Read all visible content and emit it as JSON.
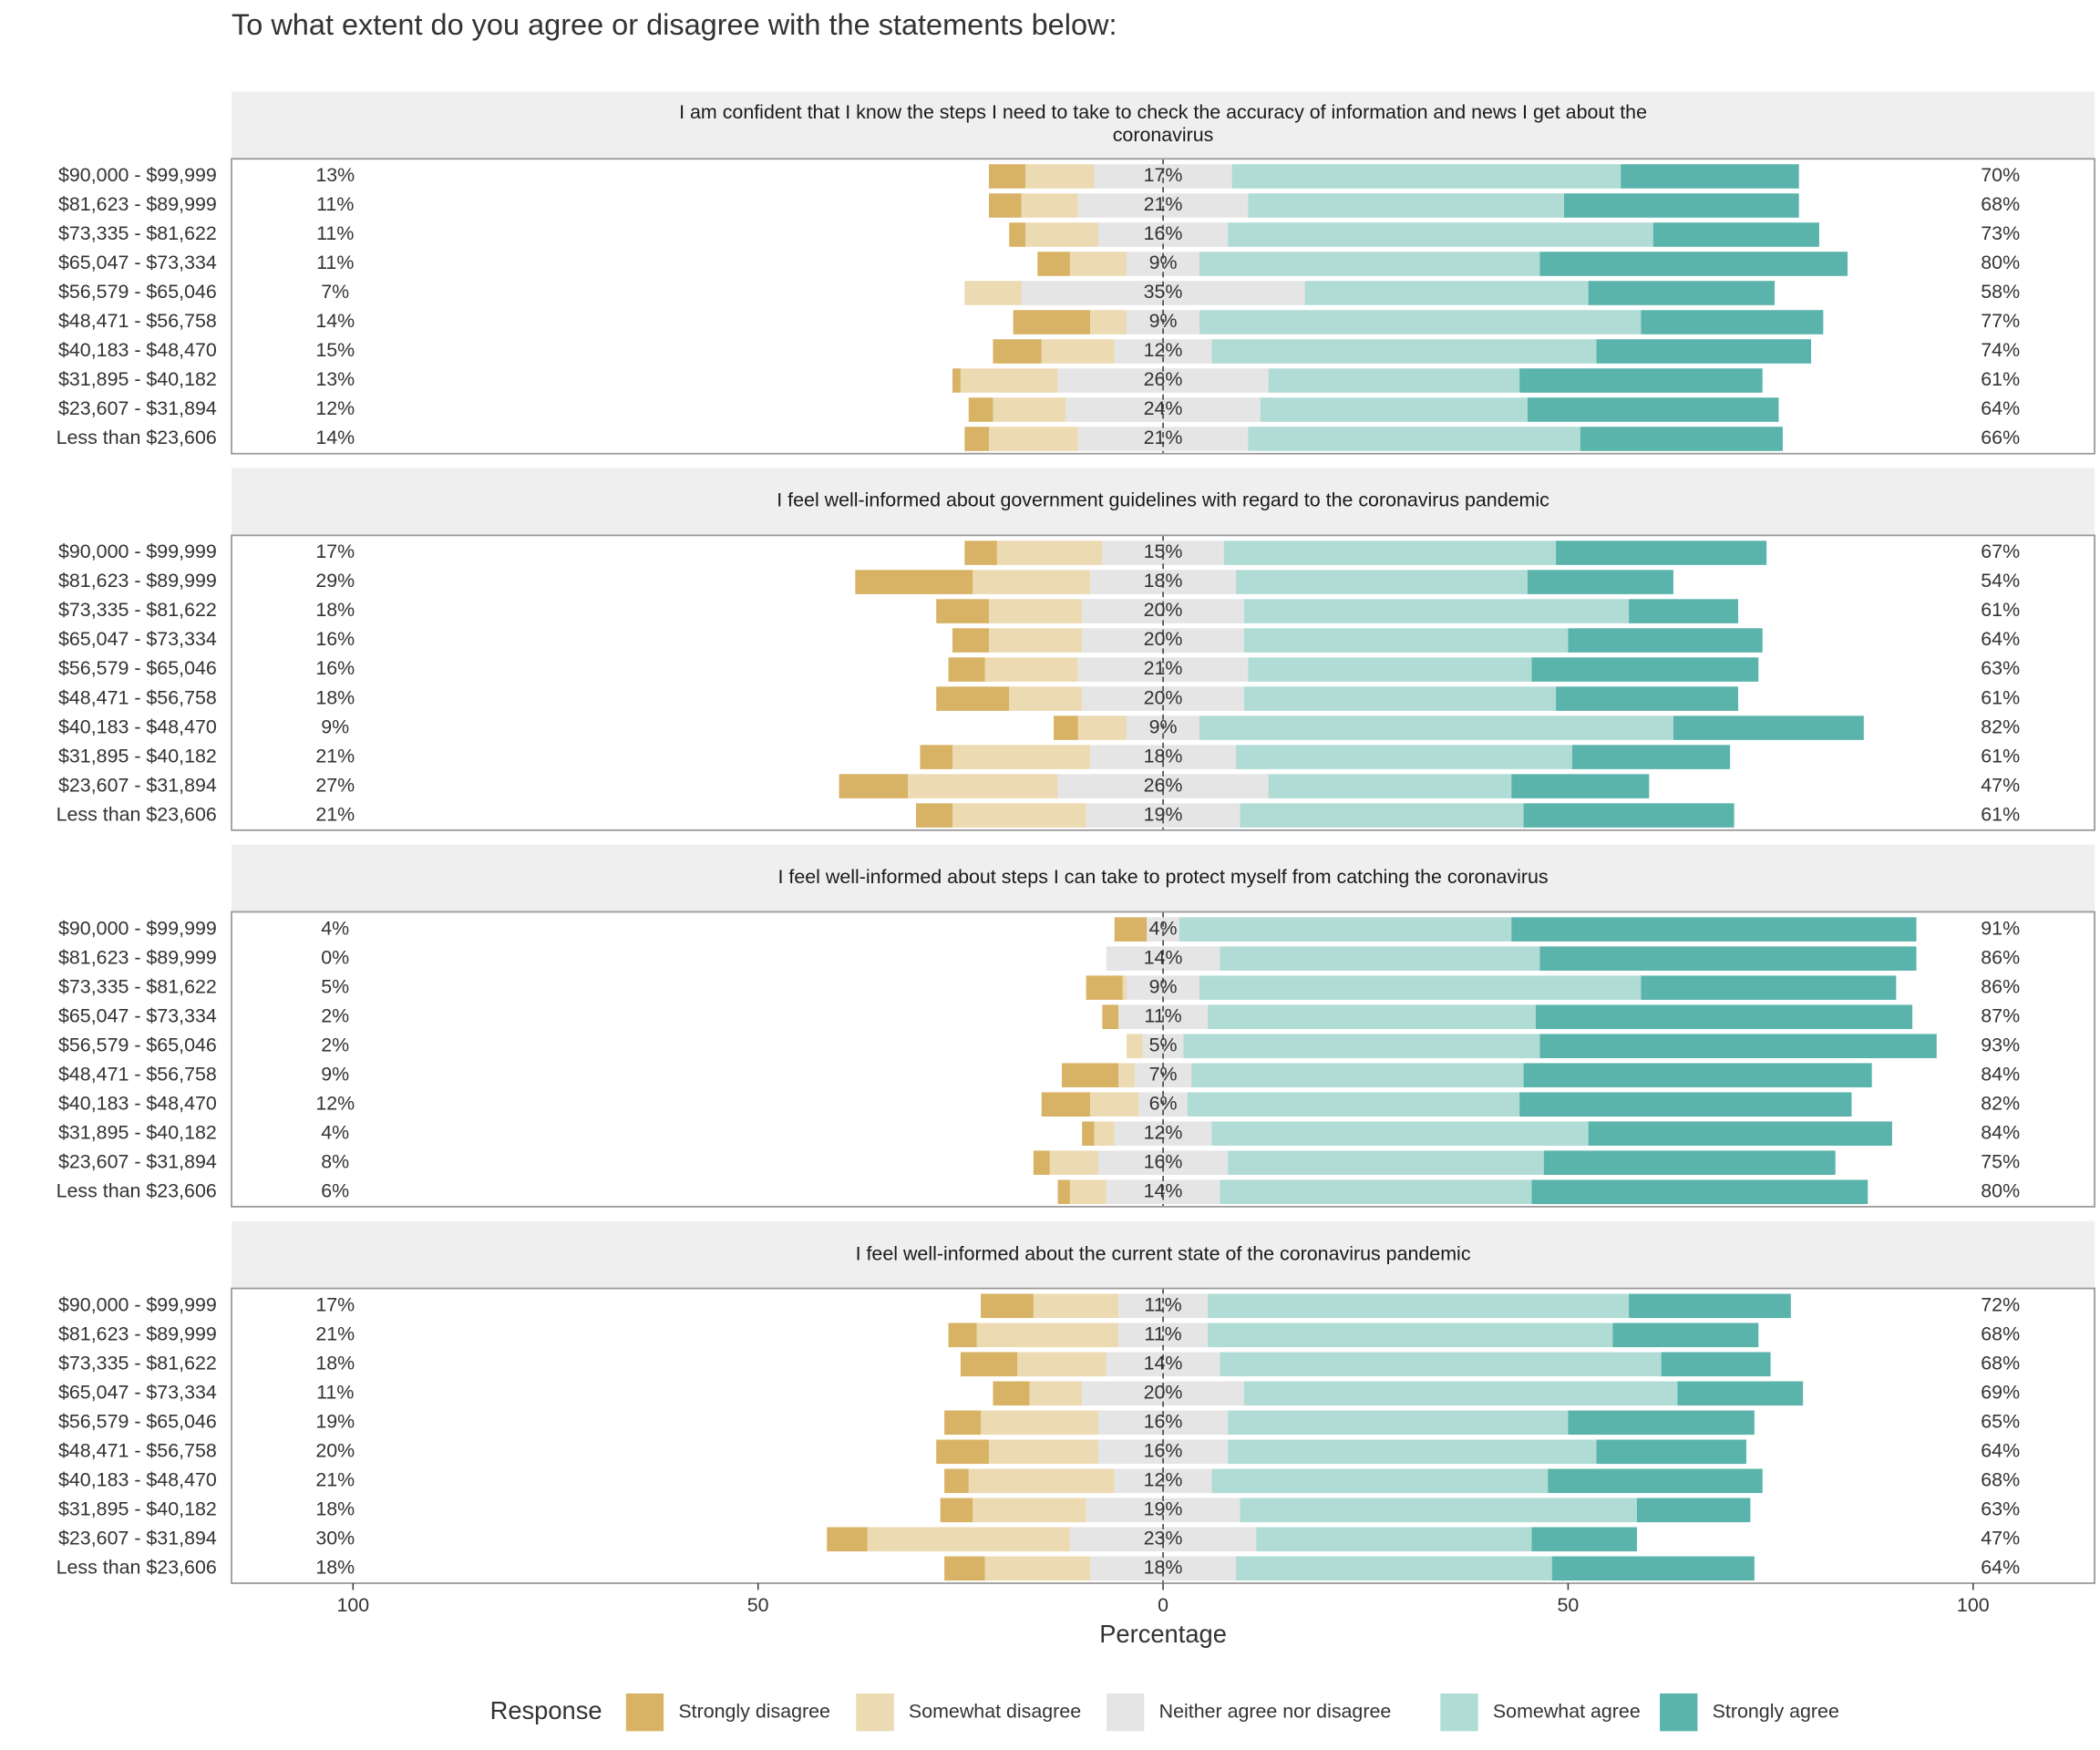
{
  "title": "To what extent do you agree or disagree with the statements below:",
  "legend": {
    "title": "Response"
  },
  "chart_data": [
    {
      "type": "diverging-bar",
      "title": "I am confident that I know the steps I need to take to check the accuracy of information and news I get about the coronavirus",
      "categories": [
        "$90,000 - $99,999",
        "$81,623 - $89,999",
        "$73,335 - $81,622",
        "$65,047 - $73,334",
        "$56,579 - $65,046",
        "$48,471 - $56,758",
        "$40,183 - $48,470",
        "$31,895 - $40,182",
        "$23,607 - $31,894",
        "Less than $23,606"
      ],
      "xlim": [
        -115,
        115
      ],
      "series": [
        {
          "name": "Strongly disagree",
          "color": "#d8b365",
          "values": [
            4.5,
            4,
            2,
            4,
            0,
            9.5,
            6,
            1,
            3,
            3
          ]
        },
        {
          "name": "Somewhat disagree",
          "color": "#ecdab2",
          "values": [
            8.5,
            7,
            9,
            7,
            7,
            4.5,
            9,
            12,
            9,
            11
          ]
        },
        {
          "name": "Neither agree nor disagree",
          "color": "#e5e5e5",
          "values": [
            17,
            21,
            16,
            9,
            35,
            9,
            12,
            26,
            24,
            21
          ],
          "value_labels": [
            "17%",
            "21%",
            "16%",
            "9%",
            "35%",
            "9%",
            "12%",
            "26%",
            "24%",
            "21%"
          ]
        },
        {
          "name": "Somewhat agree",
          "color": "#b1dcd6",
          "values": [
            48,
            39,
            52.5,
            42,
            35,
            54.5,
            47.5,
            31,
            33,
            41
          ]
        },
        {
          "name": "Strongly agree",
          "color": "#5ab4ac",
          "values": [
            22,
            29,
            20.5,
            38,
            23,
            22.5,
            26.5,
            30,
            31,
            25
          ]
        }
      ],
      "disagree_labels": [
        "13%",
        "11%",
        "11%",
        "11%",
        "7%",
        "14%",
        "15%",
        "13%",
        "12%",
        "14%"
      ],
      "agree_labels": [
        "70%",
        "68%",
        "73%",
        "80%",
        "58%",
        "77%",
        "74%",
        "61%",
        "64%",
        "66%"
      ]
    },
    {
      "type": "diverging-bar",
      "title": "I feel well-informed about government guidelines with regard to the coronavirus pandemic",
      "categories": [
        "$90,000 - $99,999",
        "$81,623 - $89,999",
        "$73,335 - $81,622",
        "$65,047 - $73,334",
        "$56,579 - $65,046",
        "$48,471 - $56,758",
        "$40,183 - $48,470",
        "$31,895 - $40,182",
        "$23,607 - $31,894",
        "Less than $23,606"
      ],
      "xlim": [
        -115,
        115
      ],
      "series": [
        {
          "name": "Strongly disagree",
          "color": "#d8b365",
          "values": [
            4,
            14.5,
            6.5,
            4.5,
            4.5,
            9,
            3,
            4,
            8.5,
            4.5
          ]
        },
        {
          "name": "Somewhat disagree",
          "color": "#ecdab2",
          "values": [
            13,
            14.5,
            11.5,
            11.5,
            11.5,
            9,
            6,
            17,
            18.5,
            16.5
          ]
        },
        {
          "name": "Neither agree nor disagree",
          "color": "#e5e5e5",
          "values": [
            15,
            18,
            20,
            20,
            21,
            20,
            9,
            18,
            26,
            19
          ],
          "value_labels": [
            "15%",
            "18%",
            "20%",
            "20%",
            "21%",
            "20%",
            "9%",
            "18%",
            "26%",
            "19%"
          ]
        },
        {
          "name": "Somewhat agree",
          "color": "#b1dcd6",
          "values": [
            41,
            36,
            47.5,
            40,
            35,
            38.5,
            58.5,
            41.5,
            30,
            35
          ]
        },
        {
          "name": "Strongly agree",
          "color": "#5ab4ac",
          "values": [
            26,
            18,
            13.5,
            24,
            28,
            22.5,
            23.5,
            19.5,
            17,
            26
          ]
        }
      ],
      "disagree_labels": [
        "17%",
        "29%",
        "18%",
        "16%",
        "16%",
        "18%",
        "9%",
        "21%",
        "27%",
        "21%"
      ],
      "agree_labels": [
        "67%",
        "54%",
        "61%",
        "64%",
        "63%",
        "61%",
        "82%",
        "61%",
        "47%",
        "61%"
      ]
    },
    {
      "type": "diverging-bar",
      "title": "I feel well-informed about steps I can take to protect myself from catching the coronavirus",
      "categories": [
        "$90,000 - $99,999",
        "$81,623 - $89,999",
        "$73,335 - $81,622",
        "$65,047 - $73,334",
        "$56,579 - $65,046",
        "$48,471 - $56,758",
        "$40,183 - $48,470",
        "$31,895 - $40,182",
        "$23,607 - $31,894",
        "Less than $23,606"
      ],
      "xlim": [
        -115,
        115
      ],
      "series": [
        {
          "name": "Strongly disagree",
          "color": "#d8b365",
          "values": [
            4,
            0,
            4.5,
            2,
            0,
            7,
            6,
            1.5,
            2,
            1.5
          ]
        },
        {
          "name": "Somewhat disagree",
          "color": "#ecdab2",
          "values": [
            0,
            0,
            0.5,
            0,
            2,
            2,
            6,
            2.5,
            6,
            4.5
          ]
        },
        {
          "name": "Neither agree nor disagree",
          "color": "#e5e5e5",
          "values": [
            4,
            14,
            9,
            11,
            5,
            7,
            6,
            12,
            16,
            14
          ],
          "value_labels": [
            "4%",
            "14%",
            "9%",
            "11%",
            "5%",
            "7%",
            "6%",
            "12%",
            "16%",
            "14%"
          ]
        },
        {
          "name": "Somewhat agree",
          "color": "#b1dcd6",
          "values": [
            41,
            39.5,
            54.5,
            40.5,
            44,
            41,
            41,
            46.5,
            39,
            38.5
          ]
        },
        {
          "name": "Strongly agree",
          "color": "#5ab4ac",
          "values": [
            50,
            46.5,
            31.5,
            46.5,
            49,
            43,
            41,
            37.5,
            36,
            41.5
          ]
        }
      ],
      "disagree_labels": [
        "4%",
        "0%",
        "5%",
        "2%",
        "2%",
        "9%",
        "12%",
        "4%",
        "8%",
        "6%"
      ],
      "agree_labels": [
        "91%",
        "86%",
        "86%",
        "87%",
        "93%",
        "84%",
        "82%",
        "84%",
        "75%",
        "80%"
      ]
    },
    {
      "type": "diverging-bar",
      "title": "I feel well-informed about the current state of the coronavirus pandemic",
      "categories": [
        "$90,000 - $99,999",
        "$81,623 - $89,999",
        "$73,335 - $81,622",
        "$65,047 - $73,334",
        "$56,579 - $65,046",
        "$48,471 - $56,758",
        "$40,183 - $48,470",
        "$31,895 - $40,182",
        "$23,607 - $31,894",
        "Less than $23,606"
      ],
      "xlim": [
        -115,
        115
      ],
      "xticks": [
        {
          "value": -100,
          "label": "100"
        },
        {
          "value": -50,
          "label": "50"
        },
        0,
        50,
        100
      ],
      "xlabel": "Percentage",
      "series": [
        {
          "name": "Strongly disagree",
          "color": "#d8b365",
          "values": [
            6.5,
            3.5,
            7,
            4.5,
            4.5,
            6.5,
            3,
            4,
            5,
            5
          ]
        },
        {
          "name": "Somewhat disagree",
          "color": "#ecdab2",
          "values": [
            10.5,
            17.5,
            11,
            6.5,
            14.5,
            13.5,
            18,
            14,
            25,
            13
          ]
        },
        {
          "name": "Neither agree nor disagree",
          "color": "#e5e5e5",
          "values": [
            11,
            11,
            14,
            20,
            16,
            16,
            12,
            19,
            23,
            18
          ],
          "value_labels": [
            "11%",
            "11%",
            "14%",
            "20%",
            "16%",
            "16%",
            "12%",
            "19%",
            "23%",
            "18%"
          ]
        },
        {
          "name": "Somewhat agree",
          "color": "#b1dcd6",
          "values": [
            52,
            50,
            54.5,
            53.5,
            42,
            45.5,
            41.5,
            49,
            34,
            39
          ]
        },
        {
          "name": "Strongly agree",
          "color": "#5ab4ac",
          "values": [
            20,
            18,
            13.5,
            15.5,
            23,
            18.5,
            26.5,
            14,
            13,
            25
          ]
        }
      ],
      "disagree_labels": [
        "17%",
        "21%",
        "18%",
        "11%",
        "19%",
        "20%",
        "21%",
        "18%",
        "30%",
        "18%"
      ],
      "agree_labels": [
        "72%",
        "68%",
        "68%",
        "69%",
        "65%",
        "64%",
        "68%",
        "63%",
        "47%",
        "64%"
      ]
    }
  ]
}
